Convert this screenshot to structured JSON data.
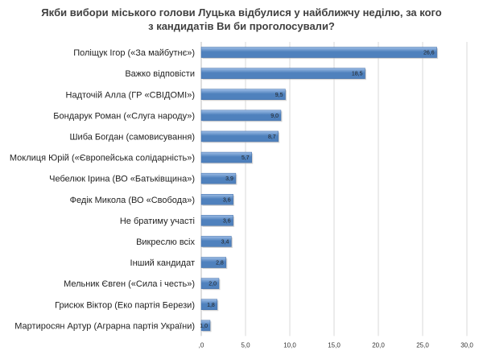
{
  "chart_data": {
    "type": "bar",
    "orientation": "horizontal",
    "title_lines": [
      "Якби вибори міського голови Луцька відбулися у найближчу неділю, за кого",
      "з кандидатів  Ви би проголосували?"
    ],
    "categories": [
      "Поліщук Ігор («За майбутнє»)",
      "Важко відповісти",
      "Надточій Алла (ГР «СВІДОМІ»)",
      "Бондарук Роман («Слуга народу»)",
      "Шиба Богдан (самовисування)",
      "Моклиця Юрій («Європейська солідарність»)",
      "Чебелюк Ірина (ВО «Батьківщина»)",
      "Федік Микола (ВО «Свобода»)",
      "Не братиму участі",
      "Викреслю всіх",
      "Інший кандидат",
      "Мельник Євген («Сила і честь»)",
      "Грисюк Віктор (Еко партія Берези)",
      "Мартиросян Артур (Аграрна партія України)"
    ],
    "values": [
      26.6,
      18.5,
      9.5,
      9.0,
      8.7,
      5.7,
      3.9,
      3.6,
      3.6,
      3.4,
      2.8,
      2.0,
      1.8,
      1.0
    ],
    "value_labels": [
      "26,6",
      "18,5",
      "9,5",
      "9,0",
      "8,7",
      "5,7",
      "3,9",
      "3,6",
      "3,6",
      "3,4",
      "2,8",
      "2,0",
      "1,8",
      "1,0"
    ],
    "xlim": [
      0,
      30
    ],
    "ticks": [
      0,
      5,
      10,
      15,
      20,
      25,
      30
    ],
    "tick_labels": [
      ",0",
      "5,0",
      "10,0",
      "15,0",
      "20,0",
      "25,0",
      "30,0"
    ],
    "grid": true,
    "bar_color": "#4f81bd",
    "bar_color_light": "#9dbde6"
  }
}
